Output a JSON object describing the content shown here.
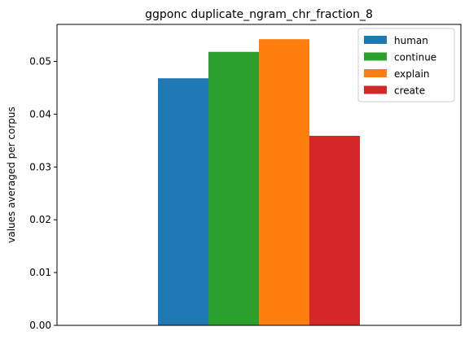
{
  "chart_data": {
    "type": "bar",
    "title": "ggponc duplicate_ngram_chr_fraction_8",
    "xlabel": "",
    "ylabel": "values averaged per corpus",
    "categories": [
      ""
    ],
    "series": [
      {
        "name": "human",
        "values": [
          0.0468
        ],
        "color": "#1f77b4"
      },
      {
        "name": "continue",
        "values": [
          0.0518
        ],
        "color": "#2ca02c"
      },
      {
        "name": "explain",
        "values": [
          0.0542
        ],
        "color": "#ff7f0e"
      },
      {
        "name": "create",
        "values": [
          0.0359
        ],
        "color": "#d62728"
      }
    ],
    "ylim": [
      0,
      0.057
    ],
    "yticks": [
      0.0,
      0.01,
      0.02,
      0.03,
      0.04,
      0.05
    ],
    "ytick_labels": [
      "0.00",
      "0.01",
      "0.02",
      "0.03",
      "0.04",
      "0.05"
    ],
    "grid": false,
    "legend_position": "top-right"
  }
}
